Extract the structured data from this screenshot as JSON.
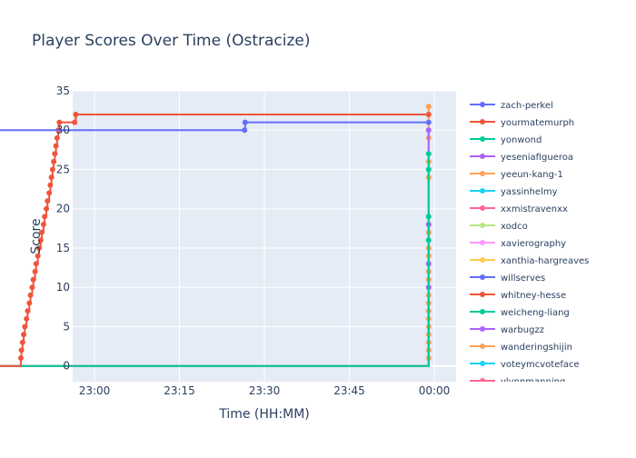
{
  "chart_data": {
    "type": "line",
    "title": "Player Scores Over Time (Ostracize)",
    "xlabel": "Time (HH:MM)",
    "ylabel": "Score",
    "x_ticks": [
      "23:00",
      "23:15",
      "23:30",
      "23:45",
      "00:00"
    ],
    "x_range_minutes": [
      -5,
      5
    ],
    "y_ticks": [
      0,
      5,
      10,
      15,
      20,
      25,
      30,
      35
    ],
    "ylim": [
      -2,
      35
    ],
    "grid": true,
    "legend_position": "right",
    "legend_visible": [
      "zach-perkel",
      "yourmatemurph",
      "yonwond",
      "yeseniafigueroa",
      "yeeun-kang-1",
      "yassinhelmy",
      "xxmistravenxx",
      "xodco",
      "xavierography",
      "xanthia-hargreaves",
      "willserves",
      "whitney-hesse",
      "weicheng-liang",
      "warbugzz",
      "wanderingshijin",
      "voteymcvoteface",
      "vlynnmanning"
    ],
    "series": [
      {
        "name": "zach-perkel",
        "color": "#636efa",
        "points": [
          [
            -96,
            0
          ],
          [
            -84,
            1
          ],
          [
            -83.9,
            2
          ],
          [
            -83.8,
            3
          ],
          [
            -83.6,
            4
          ],
          [
            -83.4,
            5
          ],
          [
            -83.2,
            6
          ],
          [
            -83,
            7
          ],
          [
            -82.8,
            8
          ],
          [
            -82.5,
            9
          ],
          [
            -82.2,
            10
          ],
          [
            -82,
            11
          ],
          [
            -81.8,
            12
          ],
          [
            -81.5,
            13
          ],
          [
            -81.3,
            14
          ],
          [
            -81,
            15
          ],
          [
            -80.8,
            16
          ],
          [
            -80.5,
            17
          ],
          [
            -80.3,
            18
          ],
          [
            -80,
            19
          ],
          [
            -79.8,
            20
          ],
          [
            -79.5,
            21
          ],
          [
            -79.2,
            22
          ],
          [
            -79,
            23
          ],
          [
            -78.7,
            24
          ],
          [
            -78.5,
            25
          ],
          [
            -78.2,
            26
          ],
          [
            -78,
            27
          ],
          [
            -77.8,
            28
          ],
          [
            -77.5,
            29
          ],
          [
            -77.3,
            30
          ],
          [
            -33.5,
            30
          ],
          [
            -33.4,
            31
          ],
          [
            -1,
            31
          ]
        ]
      },
      {
        "name": "yourmatemurph",
        "color": "#ef553b",
        "points": [
          [
            -96,
            0
          ],
          [
            -73,
            1
          ],
          [
            -72.9,
            2
          ],
          [
            -72.7,
            3
          ],
          [
            -72.5,
            4
          ],
          [
            -72.3,
            5
          ],
          [
            -72,
            6
          ],
          [
            -71.8,
            7
          ],
          [
            -71.5,
            8
          ],
          [
            -71.3,
            9
          ],
          [
            -71,
            10
          ],
          [
            -70.8,
            11
          ],
          [
            -70.5,
            12
          ],
          [
            -70.3,
            13
          ],
          [
            -70,
            14
          ],
          [
            -69.8,
            15
          ],
          [
            -69.5,
            16
          ],
          [
            -69.3,
            17
          ],
          [
            -69,
            18
          ],
          [
            -68.8,
            19
          ],
          [
            -68.5,
            20
          ],
          [
            -68.3,
            21
          ],
          [
            -68,
            22
          ],
          [
            -67.8,
            23
          ],
          [
            -67.6,
            24
          ],
          [
            -67.4,
            25
          ],
          [
            -67.2,
            26
          ],
          [
            -67,
            27
          ],
          [
            -66.8,
            28
          ],
          [
            -66.6,
            29
          ],
          [
            -66.4,
            30
          ],
          [
            -66.2,
            31
          ],
          [
            -63.5,
            31
          ],
          [
            -63.3,
            32
          ],
          [
            -1,
            32
          ]
        ]
      },
      {
        "name": "yonwond",
        "color": "#00cc96",
        "points": [
          [
            -96,
            0
          ],
          [
            -1,
            19
          ],
          [
            -1,
            25
          ],
          [
            -1,
            27
          ],
          [
            -1,
            16
          ]
        ]
      },
      {
        "name": "yeseniafigueroa",
        "color": "#ab63fa",
        "points": [
          [
            -96,
            0
          ],
          [
            -1,
            10
          ],
          [
            -1,
            13
          ],
          [
            -1,
            18
          ],
          [
            -1,
            30
          ]
        ]
      },
      {
        "name": "yeeun-kang-1",
        "color": "#ffa15a",
        "points": [
          [
            -96,
            0
          ],
          [
            -1,
            1
          ],
          [
            -1,
            2
          ],
          [
            -1,
            3
          ],
          [
            -1,
            4
          ],
          [
            -1,
            5
          ],
          [
            -1,
            6
          ],
          [
            -1,
            7
          ],
          [
            -1,
            8
          ],
          [
            -1,
            9
          ],
          [
            -1,
            10
          ],
          [
            -1,
            11
          ],
          [
            -1,
            12
          ],
          [
            -1,
            13
          ],
          [
            -1,
            14
          ],
          [
            -1,
            15
          ],
          [
            -1,
            16
          ],
          [
            -1,
            17
          ],
          [
            -1,
            18
          ],
          [
            -1,
            24
          ],
          [
            -1,
            25
          ],
          [
            -1,
            26
          ],
          [
            -1,
            29
          ],
          [
            -1,
            32
          ],
          [
            -1,
            33
          ]
        ]
      },
      {
        "name": "xodco",
        "color": "#b6e880",
        "points": [
          [
            -96,
            0
          ],
          [
            -1,
            14
          ]
        ]
      },
      {
        "name": "xavierography",
        "color": "#ff97ff",
        "points": [
          [
            -96,
            0
          ],
          [
            -1,
            11
          ],
          [
            -1,
            17
          ],
          [
            -1,
            18
          ]
        ]
      },
      {
        "name": "xanthia-hargreaves",
        "color": "#fecb52",
        "points": [
          [
            -96,
            0
          ],
          [
            -1,
            15
          ],
          [
            -1,
            24
          ],
          [
            -1,
            26
          ],
          [
            -1,
            33
          ]
        ]
      }
    ]
  }
}
